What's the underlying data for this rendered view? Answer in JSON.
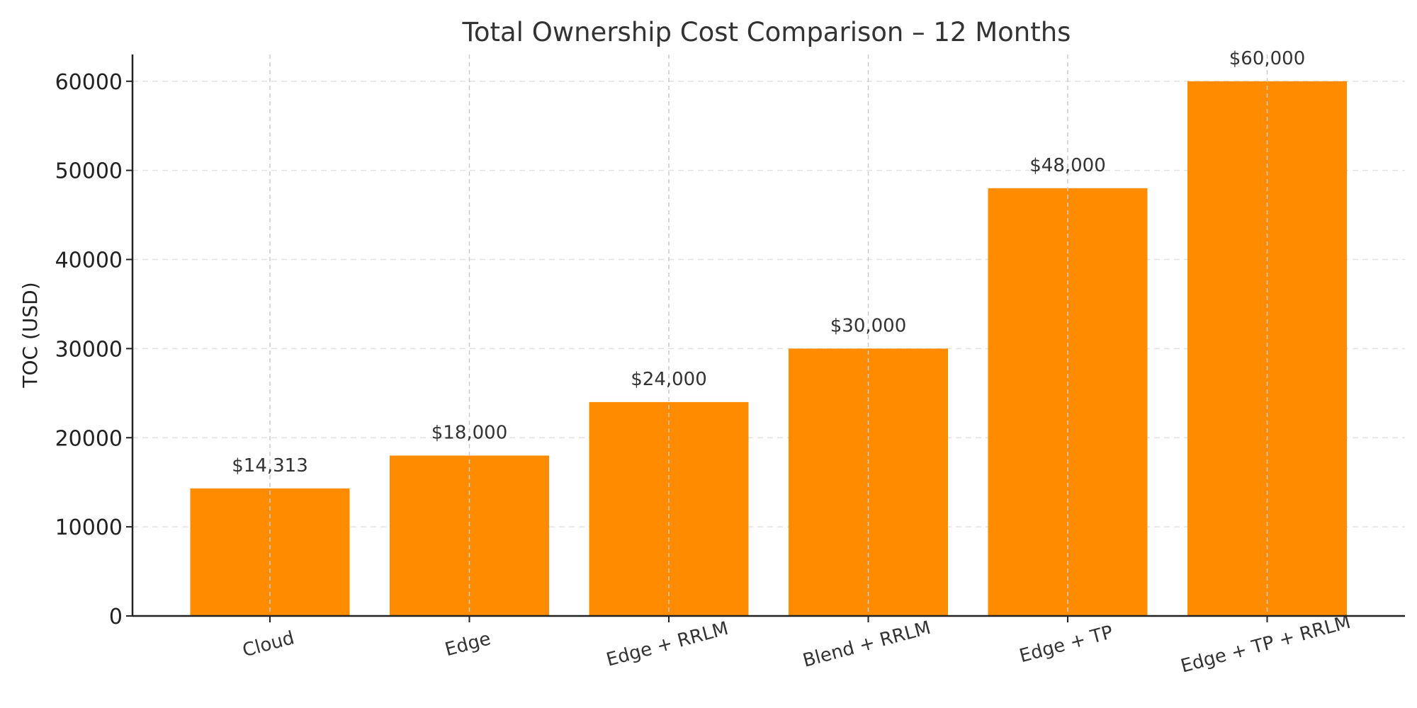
{
  "chart_data": {
    "type": "bar",
    "title": "Total Ownership Cost Comparison – 12 Months",
    "xlabel": "",
    "ylabel": "TOC (USD)",
    "categories": [
      "Cloud",
      "Edge",
      "Edge + RRLM",
      "Blend + RRLM",
      "Edge + TP",
      "Edge + TP + RRLM"
    ],
    "values": [
      14313,
      18000,
      24000,
      30000,
      48000,
      60000
    ],
    "value_labels": [
      "$14,313",
      "$18,000",
      "$24,000",
      "$30,000",
      "$48,000",
      "$60,000"
    ],
    "ylim": [
      0,
      63000
    ],
    "yticks": [
      0,
      10000,
      20000,
      30000,
      40000,
      50000,
      60000
    ],
    "ytick_labels": [
      "0",
      "10000",
      "20000",
      "30000",
      "40000",
      "50000",
      "60000"
    ],
    "grid": true,
    "bar_color": "#FF8C00"
  }
}
